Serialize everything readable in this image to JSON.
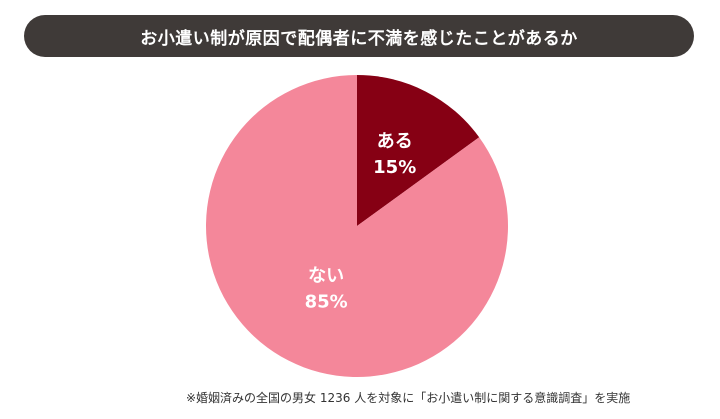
{
  "chart_data": {
    "type": "pie",
    "title": "お小遣い制が原因で配偶者に不満を感じたことがあるか",
    "slices": [
      {
        "name": "ある",
        "value": 15,
        "label": "15%",
        "color": "#860014"
      },
      {
        "name": "ない",
        "value": 85,
        "label": "85%",
        "color": "#f4879a"
      }
    ],
    "start_angle_deg": 0,
    "direction": "clockwise",
    "legend": "none"
  },
  "footnote": "※婚姻済みの全国の男女 1236 人を対象に「お小遣い制に関する意識調査」を実施"
}
